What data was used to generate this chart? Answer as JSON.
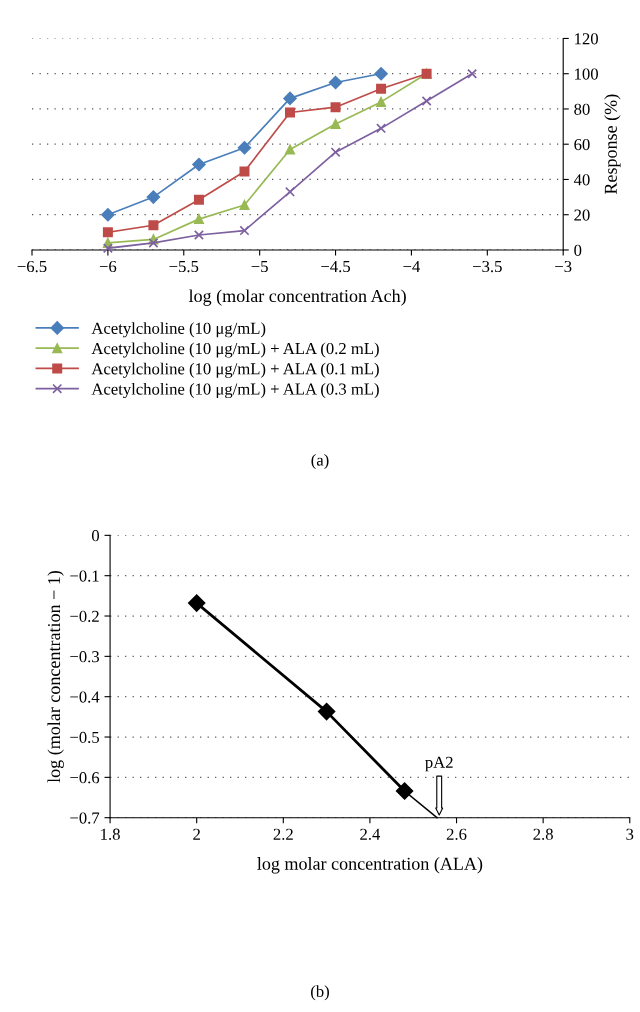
{
  "chart_data": [
    {
      "type": "line",
      "xlabel": "log (molar concentration Ach)",
      "ylabel": "Response (%)",
      "xlim": [
        -6.5,
        -3
      ],
      "xticks": [
        -6.5,
        -6,
        -5.5,
        -5,
        -4.5,
        -4,
        -3.5,
        -3
      ],
      "ylim": [
        0,
        120
      ],
      "yticks": [
        0,
        20,
        40,
        60,
        80,
        100,
        120
      ],
      "grid": "y",
      "legend": "bottom",
      "annotations": [
        "(a)"
      ],
      "series": [
        {
          "name": "Acetylcholine (10 μg/mL)",
          "color": "#4a7ebb",
          "marker": "diamond",
          "x": [
            -6,
            -5.7,
            -5.4,
            -5.1,
            -4.8,
            -4.5,
            -4.2
          ],
          "values": [
            20,
            30,
            48.5,
            58,
            86,
            95,
            100
          ]
        },
        {
          "name": "Acetylcholine (10 μg/mL) + ALA (0.2 mL)",
          "color": "#98b954",
          "marker": "triangle",
          "x": [
            -6,
            -5.7,
            -5.4,
            -5.1,
            -4.8,
            -4.5,
            -4.2,
            -3.9
          ],
          "values": [
            4,
            6,
            17.5,
            25.5,
            57,
            71.5,
            84,
            100
          ]
        },
        {
          "name": "Acetylcholine (10 μg/mL) + ALA (0.1 mL)",
          "color": "#be4b48",
          "marker": "square",
          "x": [
            -6,
            -5.7,
            -5.4,
            -5.1,
            -4.8,
            -4.5,
            -4.2,
            -3.9
          ],
          "values": [
            10,
            14,
            28.5,
            44.5,
            78,
            81,
            91.5,
            100
          ]
        },
        {
          "name": "Acetylcholine (10 μg/mL) + ALA (0.3 mL)",
          "color": "#7d60a0",
          "marker": "cross",
          "x": [
            -6,
            -5.7,
            -5.4,
            -5.1,
            -4.8,
            -4.5,
            -4.2,
            -3.9,
            -3.6
          ],
          "values": [
            1,
            4,
            8.5,
            11,
            33,
            55.5,
            69,
            84.5,
            100
          ]
        }
      ]
    },
    {
      "type": "line",
      "xlabel": "log molar concentration (ALA)",
      "ylabel": "log (molar concentration − 1)",
      "xlim": [
        1.8,
        3
      ],
      "xticks": [
        1.8,
        2,
        2.2,
        2.4,
        2.6,
        2.8,
        3
      ],
      "ylim": [
        -0.7,
        0
      ],
      "yticks": [
        -0.7,
        -0.6,
        -0.5,
        -0.4,
        -0.3,
        -0.2,
        -0.1,
        0
      ],
      "grid": "y",
      "annotations": [
        {
          "text": "pA2",
          "x": 2.56,
          "y": -0.7
        },
        "(b)"
      ],
      "series": [
        {
          "color": "#000000",
          "marker": "diamond",
          "x": [
            2,
            2.3,
            2.48
          ],
          "values": [
            -0.168,
            -0.437,
            -0.634
          ]
        },
        {
          "color": "#000000",
          "marker": "none",
          "x": [
            2.48,
            2.555
          ],
          "values": [
            -0.634,
            -0.7
          ]
        }
      ]
    }
  ]
}
